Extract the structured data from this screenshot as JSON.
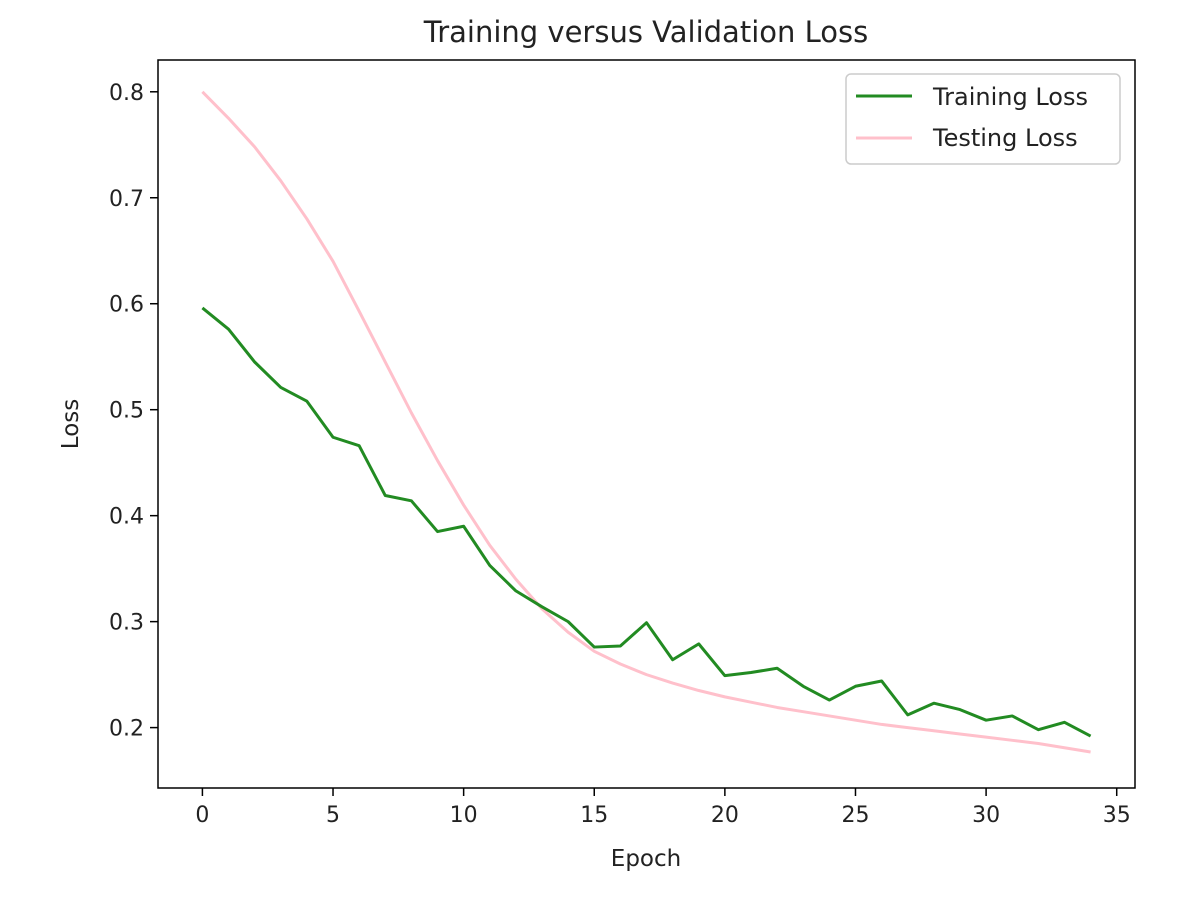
{
  "chart_data": {
    "type": "line",
    "title": "Training versus Validation Loss",
    "xlabel": "Epoch",
    "ylabel": "Loss",
    "xlim": [
      -1.7,
      35.7
    ],
    "ylim": [
      0.143,
      0.83
    ],
    "xticks": [
      0,
      5,
      10,
      15,
      20,
      25,
      30,
      35
    ],
    "yticks": [
      0.2,
      0.3,
      0.4,
      0.5,
      0.6,
      0.7,
      0.8
    ],
    "grid": false,
    "legend_position": "top-right",
    "x": [
      0,
      1,
      2,
      3,
      4,
      5,
      6,
      7,
      8,
      9,
      10,
      11,
      12,
      13,
      14,
      15,
      16,
      17,
      18,
      19,
      20,
      21,
      22,
      23,
      24,
      25,
      26,
      27,
      28,
      29,
      30,
      31,
      32,
      33,
      34
    ],
    "series": [
      {
        "name": "Training Loss",
        "color": "#228B22",
        "values": [
          0.596,
          0.576,
          0.545,
          0.521,
          0.508,
          0.474,
          0.466,
          0.419,
          0.414,
          0.385,
          0.39,
          0.353,
          0.329,
          0.314,
          0.3,
          0.276,
          0.277,
          0.299,
          0.264,
          0.279,
          0.249,
          0.252,
          0.256,
          0.239,
          0.226,
          0.239,
          0.244,
          0.212,
          0.223,
          0.217,
          0.207,
          0.211,
          0.198,
          0.205,
          0.192
        ]
      },
      {
        "name": "Testing Loss",
        "color": "#FFC0CB",
        "values": [
          0.8,
          0.775,
          0.748,
          0.716,
          0.68,
          0.64,
          0.593,
          0.545,
          0.497,
          0.452,
          0.41,
          0.372,
          0.34,
          0.312,
          0.29,
          0.272,
          0.26,
          0.25,
          0.242,
          0.235,
          0.229,
          0.224,
          0.219,
          0.215,
          0.211,
          0.207,
          0.203,
          0.2,
          0.197,
          0.194,
          0.191,
          0.188,
          0.185,
          0.181,
          0.177
        ]
      }
    ]
  }
}
